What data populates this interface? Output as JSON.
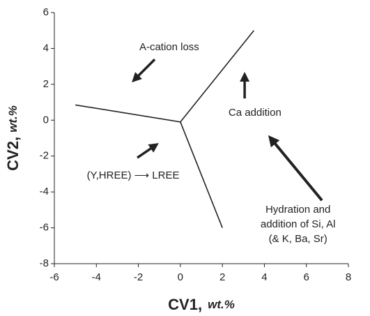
{
  "chart_data": {
    "type": "line",
    "xlabel": "CV1,",
    "xlabel_unit": "wt.%",
    "ylabel": "CV2,",
    "ylabel_unit": "wt.%",
    "xlim": [
      -6,
      8
    ],
    "xticks": [
      -6,
      -4,
      -2,
      0,
      2,
      4,
      6,
      8
    ],
    "ylim": [
      -8,
      6
    ],
    "yticks": [
      -8,
      -6,
      -4,
      -2,
      0,
      2,
      4,
      6
    ],
    "grid": false,
    "color": "#222",
    "series": [
      {
        "x": [
          0,
          -5
        ],
        "values": [
          -0.1,
          0.85
        ]
      },
      {
        "x": [
          0,
          3.5
        ],
        "values": [
          -0.1,
          5
        ]
      },
      {
        "x": [
          0,
          2
        ],
        "values": [
          -0.1,
          -6
        ]
      }
    ],
    "annotations": [
      {
        "lines": [
          "A-cation loss"
        ],
        "x": -0.53,
        "y": 4.05
      },
      {
        "lines": [
          "Ca addition"
        ],
        "x": 3.55,
        "y": 0.4
      },
      {
        "lines": [
          "(Y,HREE) ⟶ LREE"
        ],
        "x": -2.25,
        "y": -3.1
      },
      {
        "lines": [
          "Hydration and",
          "addition of Si, Al",
          "(& K, Ba, Sr)"
        ],
        "x": 5.6,
        "y": -5.83
      }
    ],
    "arrows": [
      {
        "from": [
          -1.22,
          3.39
        ],
        "to": [
          -2.15,
          2.3
        ]
      },
      {
        "from": [
          3.06,
          1.21
        ],
        "to": [
          3.06,
          2.42
        ]
      },
      {
        "from": [
          -2.05,
          -2.09
        ],
        "to": [
          -1.22,
          -1.43
        ]
      },
      {
        "from": [
          6.74,
          -4.47
        ],
        "to": [
          4.35,
          -1.08
        ]
      }
    ]
  }
}
